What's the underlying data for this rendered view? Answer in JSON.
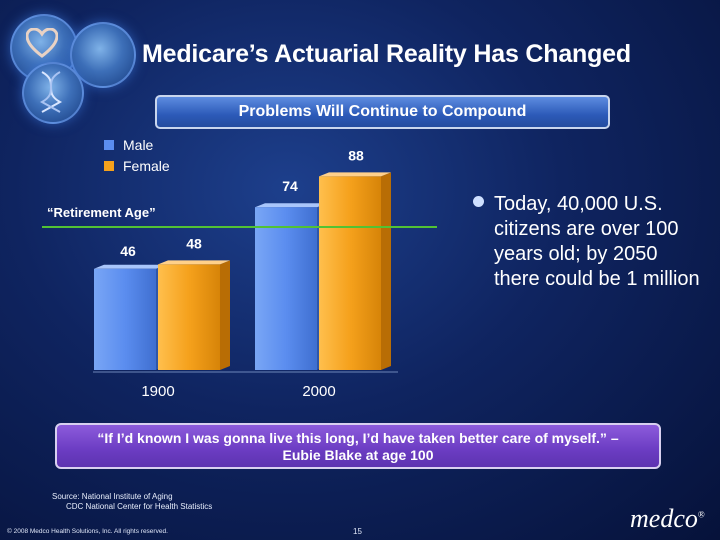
{
  "slide": {
    "title": "Medicare’s Actuarial Reality Has Changed",
    "banner": "Problems Will Continue to Compound",
    "bullet": "Today, 40,000 U.S. citizens are over 100 years old; by 2050 there could be 1 million",
    "quote_line1": "“If I’d known I was gonna live this long, I’d have taken better care of myself.” –",
    "quote_line2": "Eubie Blake at age 100",
    "source_line1": "Source:  National Institute of Aging",
    "source_line2": "CDC National Center for Health Statistics",
    "copyright": "© 2008 Medco Health Solutions, Inc. All rights reserved.",
    "page_number": "15",
    "brand": "medco",
    "brand_mark": "®"
  },
  "colors": {
    "male": "#5b8def",
    "female": "#f5a11c",
    "reference_line": "#52c234"
  },
  "chart_data": {
    "type": "bar",
    "categories": [
      "1900",
      "2000"
    ],
    "series": [
      {
        "name": "Male",
        "values": [
          46,
          74
        ]
      },
      {
        "name": "Female",
        "values": [
          48,
          88
        ]
      }
    ],
    "reference_line": {
      "label": "“Retirement Age”",
      "value": 65
    },
    "title": "",
    "xlabel": "",
    "ylabel": "",
    "ylim": [
      0,
      100
    ],
    "legend": "top-left"
  }
}
